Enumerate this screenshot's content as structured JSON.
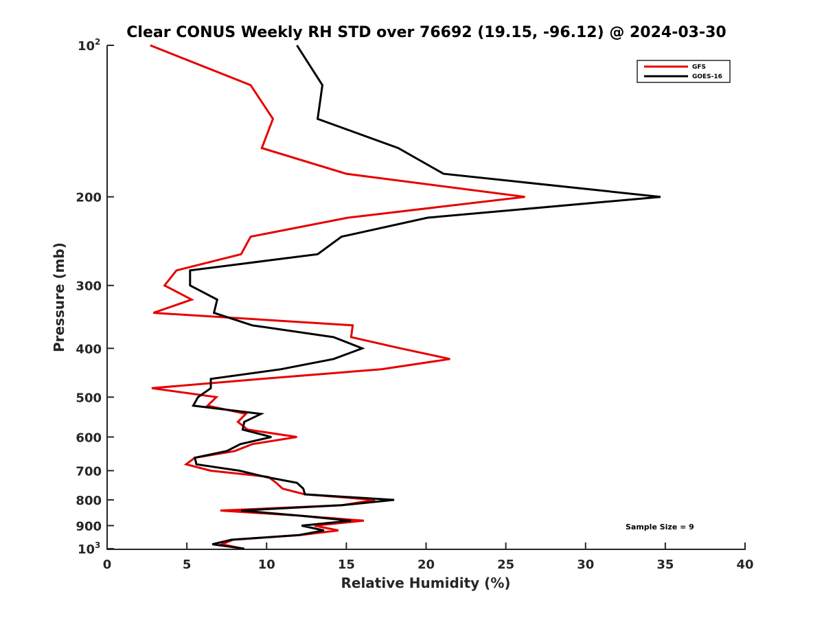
{
  "chart_data": {
    "type": "line",
    "title": "Clear CONUS Weekly RH STD over 76692 (19.15, -96.12) @ 2024-03-30",
    "xlabel": "Relative Humidity (%)",
    "ylabel": "Pressure (mb)",
    "xlim": [
      0,
      40
    ],
    "ylim": [
      100,
      1000
    ],
    "yscale": "log",
    "y_reversed": true,
    "grid": false,
    "legend_position": "top-right",
    "x_ticks": [
      0,
      5,
      10,
      15,
      20,
      25,
      30,
      35,
      40
    ],
    "x_tick_labels": [
      "0",
      "5",
      "10",
      "15",
      "20",
      "25",
      "30",
      "35",
      "40"
    ],
    "y_ticks": [
      100,
      200,
      300,
      400,
      500,
      600,
      700,
      800,
      900,
      1000
    ],
    "y_tick_labels": [
      {
        "base": "10",
        "exp": "2"
      },
      {
        "base": "200"
      },
      {
        "base": "300"
      },
      {
        "base": "400"
      },
      {
        "base": "500"
      },
      {
        "base": "600"
      },
      {
        "base": "700"
      },
      {
        "base": "800"
      },
      {
        "base": "900"
      },
      {
        "base": "10",
        "exp": "3"
      }
    ],
    "pressure": [
      100,
      120,
      140,
      160,
      180,
      200,
      220,
      240,
      260,
      280,
      300,
      320,
      340,
      360,
      380,
      400,
      420,
      440,
      460,
      480,
      500,
      520,
      540,
      560,
      580,
      600,
      620,
      640,
      660,
      680,
      700,
      720,
      740,
      760,
      780,
      800,
      820,
      840,
      860,
      880,
      900,
      920,
      940,
      960,
      980,
      1000
    ],
    "series": [
      {
        "name": "GFS",
        "color": "#e60000",
        "values": [
          2.7,
          9.0,
          10.4,
          9.7,
          15.0,
          26.2,
          15.1,
          9.0,
          8.4,
          4.35,
          3.6,
          5.3,
          2.9,
          15.4,
          15.3,
          18.4,
          21.5,
          17.2,
          9.7,
          2.8,
          6.85,
          6.3,
          8.7,
          8.2,
          8.8,
          11.9,
          9.1,
          8.0,
          5.5,
          4.95,
          6.5,
          10.1,
          10.6,
          11.0,
          12.4,
          16.8,
          14.7,
          7.1,
          12.1,
          16.1,
          13.0,
          14.5,
          12.1,
          7.9,
          7.2,
          8.5
        ]
      },
      {
        "name": "GOES-16",
        "color": "#000000",
        "values": [
          11.9,
          13.5,
          13.2,
          18.25,
          21.1,
          34.7,
          20.1,
          14.7,
          13.2,
          5.2,
          5.2,
          6.9,
          6.7,
          9.1,
          14.2,
          16.0,
          14.2,
          10.9,
          6.5,
          6.5,
          5.7,
          5.4,
          9.65,
          8.6,
          8.5,
          10.3,
          8.35,
          7.5,
          5.5,
          5.6,
          8.3,
          9.9,
          11.9,
          12.3,
          12.4,
          18.0,
          14.7,
          8.4,
          12.1,
          15.3,
          12.2,
          13.6,
          12.0,
          7.8,
          6.6,
          8.6
        ]
      }
    ],
    "annotations": [
      "Sample Size = 9"
    ]
  }
}
